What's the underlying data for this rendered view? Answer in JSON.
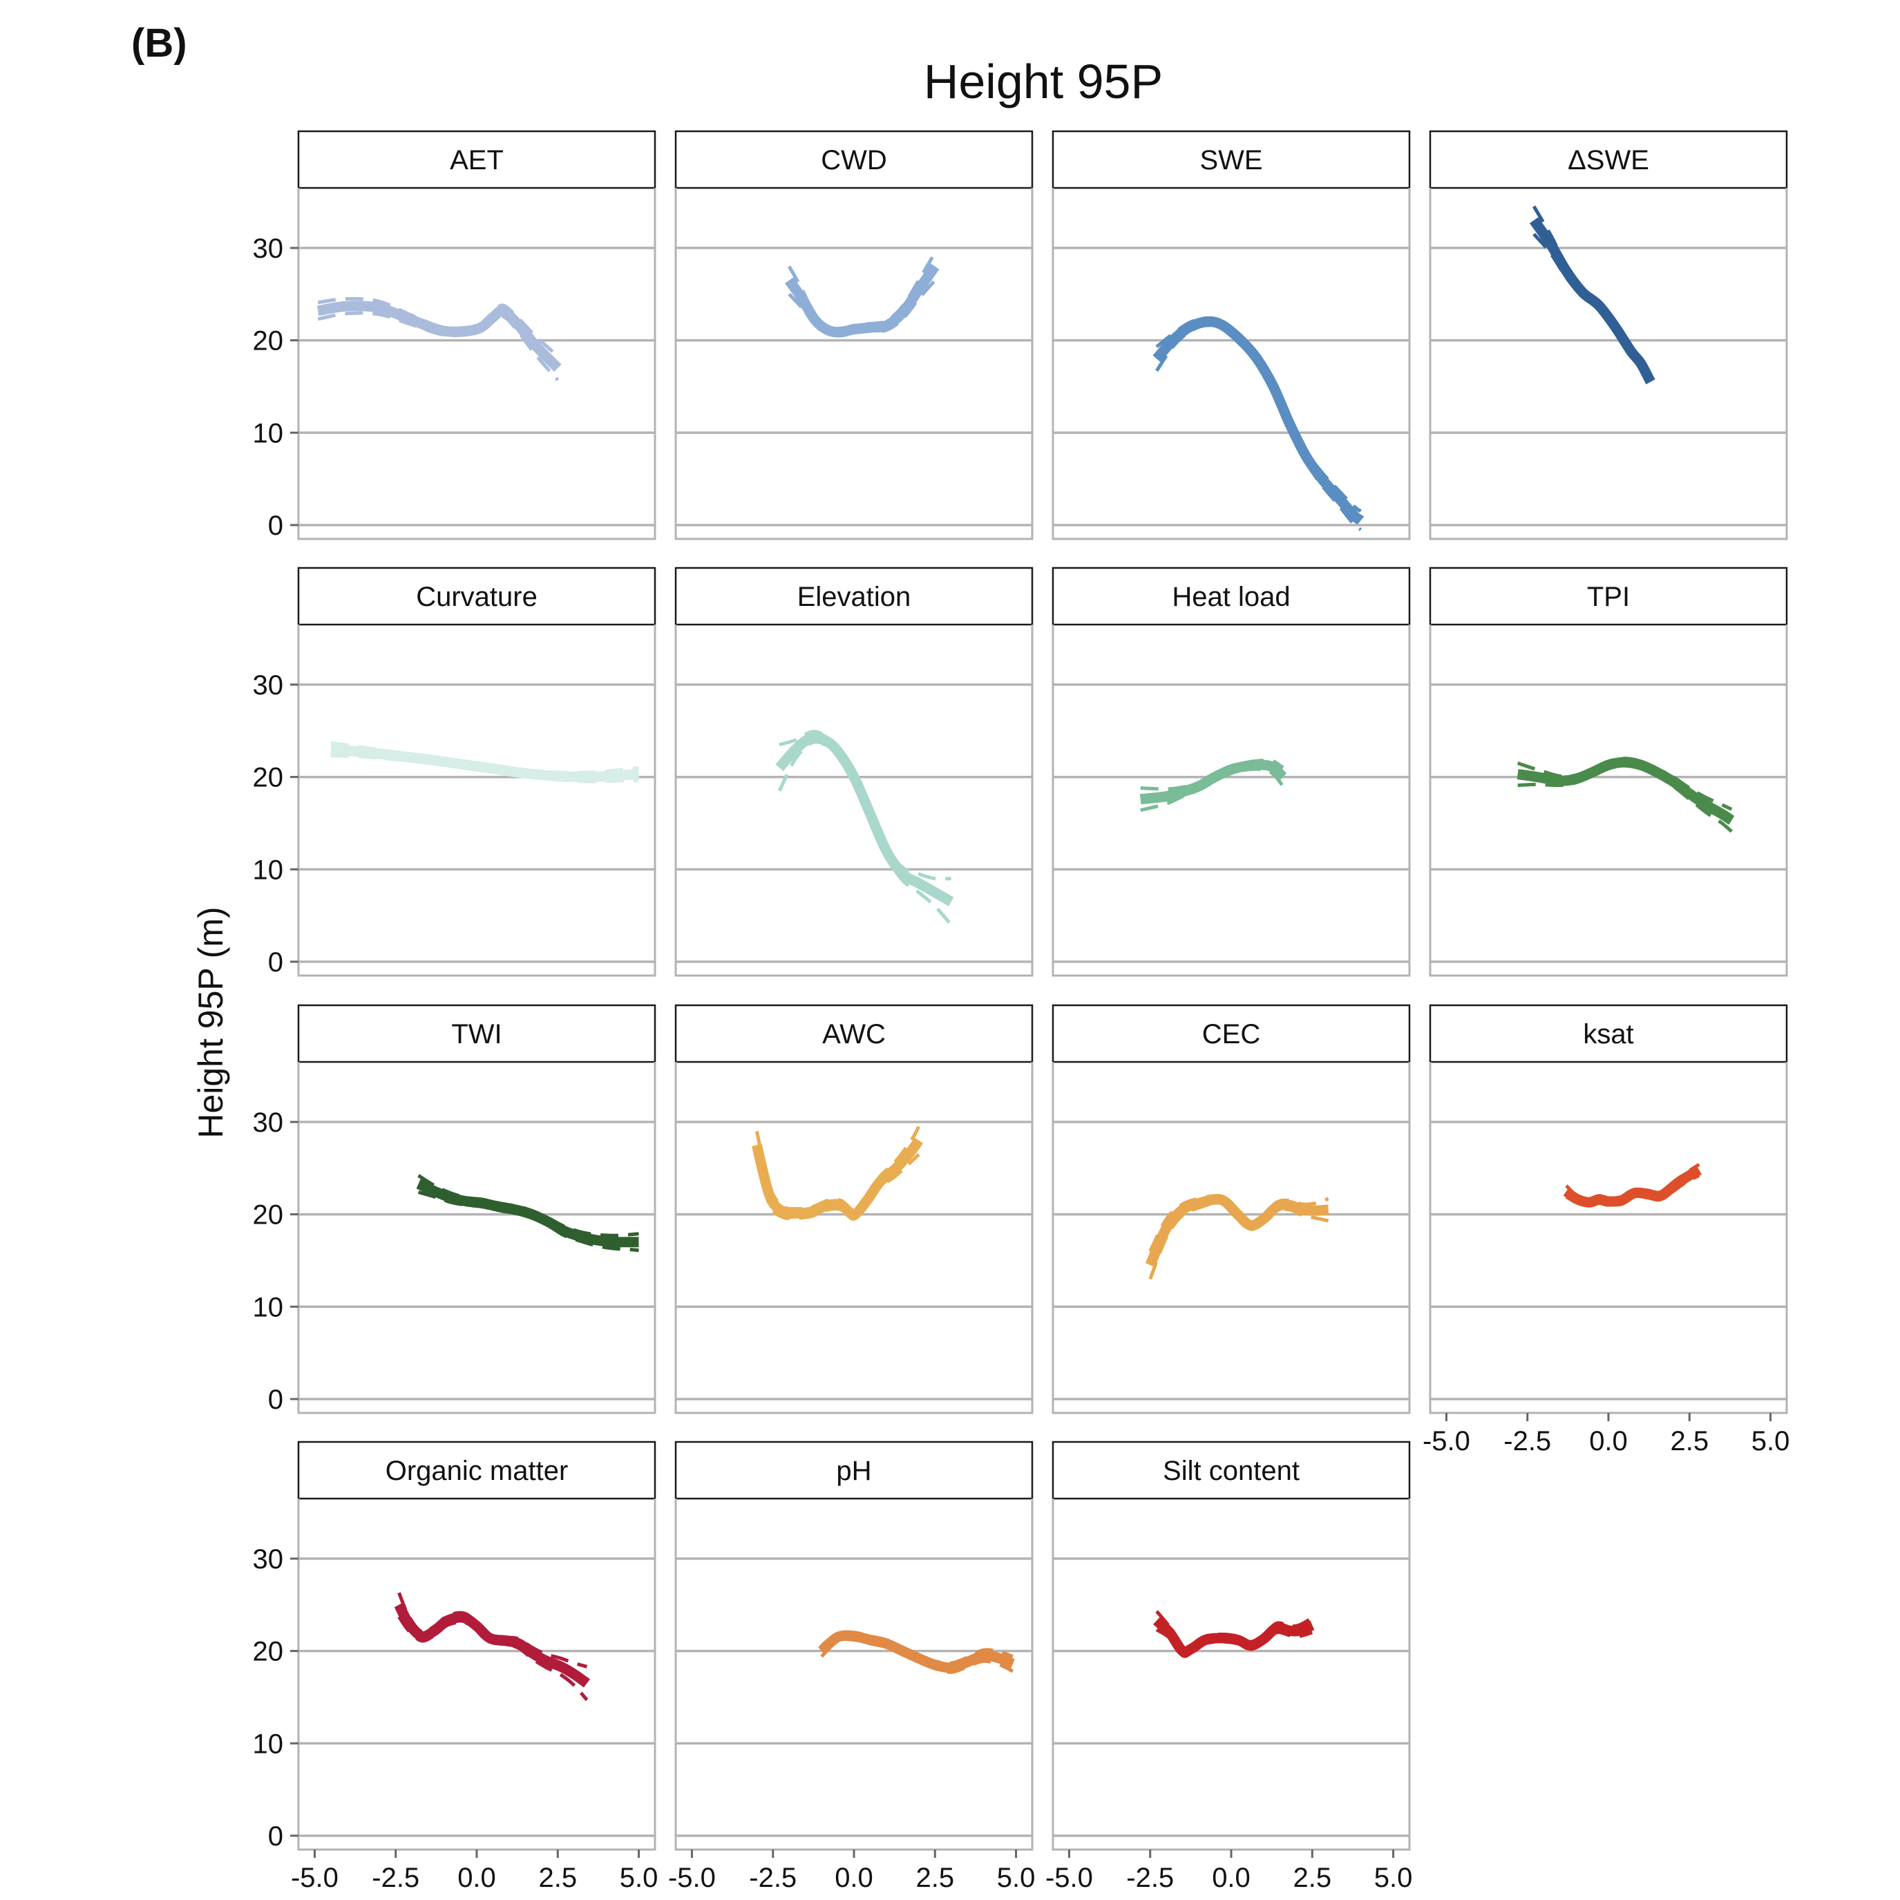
{
  "figure": {
    "panel_label": "(B)",
    "title": "Height 95P",
    "ylabel": "Height 95P (m)"
  },
  "chart_data": {
    "type": "line",
    "title": "Height 95P",
    "ylabel": "Height 95P (m)",
    "xlabel": "",
    "xlim": [
      -5.5,
      5.5
    ],
    "ylim": [
      -1.5,
      36.5
    ],
    "xticks": [
      "-5.0",
      "-2.5",
      "0.0",
      "2.5",
      "5.0"
    ],
    "xtick_values": [
      -5,
      -2.5,
      0,
      2.5,
      5
    ],
    "yticks": [
      "0",
      "10",
      "20",
      "30"
    ],
    "ytick_values": [
      0,
      10,
      20,
      30
    ],
    "grid": "horizontal",
    "ci_style": "dashed",
    "panels": [
      {
        "name": "AET",
        "color": "#aabbdc",
        "x": [
          -4.9,
          -4.0,
          -3.0,
          -2.0,
          -1.0,
          0.0,
          0.5,
          0.8,
          1.2,
          1.8,
          2.5
        ],
        "y": [
          23.2,
          23.7,
          23.5,
          22.2,
          21.0,
          21.2,
          22.5,
          23.2,
          22.0,
          19.5,
          17.0
        ],
        "ci": [
          0.9,
          0.8,
          0.7,
          0.5,
          0.4,
          0.4,
          0.5,
          0.6,
          0.7,
          1.0,
          1.3
        ]
      },
      {
        "name": "CWD",
        "color": "#8eaed7",
        "x": [
          -2.0,
          -1.6,
          -1.2,
          -0.8,
          -0.4,
          0.0,
          0.5,
          1.0,
          1.5,
          2.0,
          2.5
        ],
        "y": [
          26.5,
          24.5,
          22.2,
          21.1,
          20.9,
          21.2,
          21.4,
          21.6,
          23.0,
          25.5,
          28.0
        ],
        "ci": [
          1.5,
          1.0,
          0.5,
          0.4,
          0.4,
          0.4,
          0.4,
          0.5,
          0.7,
          1.0,
          1.5
        ]
      },
      {
        "name": "SWE",
        "color": "#5a8ec2",
        "x": [
          -2.3,
          -1.8,
          -1.3,
          -0.8,
          -0.3,
          0.3,
          0.8,
          1.3,
          1.8,
          2.3,
          2.8,
          3.3,
          3.8,
          4.0
        ],
        "y": [
          18.0,
          20.0,
          21.4,
          22.0,
          21.7,
          20.0,
          18.0,
          15.0,
          11.0,
          7.5,
          5.0,
          3.0,
          1.0,
          0.5
        ],
        "ci": [
          1.3,
          0.7,
          0.5,
          0.4,
          0.4,
          0.4,
          0.4,
          0.4,
          0.5,
          0.6,
          0.7,
          0.8,
          1.0,
          1.0
        ]
      },
      {
        "name": "ΔSWE",
        "color": "#2f5f95",
        "x": [
          -2.3,
          -1.8,
          -1.3,
          -0.8,
          -0.3,
          0.2,
          0.7,
          1.0,
          1.3
        ],
        "y": [
          33.0,
          30.5,
          27.5,
          25.2,
          23.8,
          21.5,
          18.8,
          17.5,
          15.5
        ],
        "ci": [
          1.5,
          1.0,
          0.7,
          0.5,
          0.4,
          0.4,
          0.4,
          0.4,
          0.4
        ]
      },
      {
        "name": "Curvature",
        "color": "#d6ede8",
        "x": [
          -4.5,
          -3.5,
          -2.5,
          -1.5,
          -0.5,
          0.5,
          1.5,
          2.5,
          3.5,
          4.5,
          5.0
        ],
        "y": [
          23.0,
          22.7,
          22.3,
          21.9,
          21.4,
          20.9,
          20.4,
          20.1,
          20.0,
          20.2,
          20.3
        ],
        "ci": [
          0.7,
          0.5,
          0.4,
          0.3,
          0.3,
          0.3,
          0.3,
          0.4,
          0.5,
          0.6,
          0.7
        ]
      },
      {
        "name": "Elevation",
        "color": "#a9d7cc",
        "x": [
          -2.3,
          -1.8,
          -1.3,
          -0.9,
          -0.5,
          0.0,
          0.5,
          1.0,
          1.5,
          2.0,
          2.5,
          3.0
        ],
        "y": [
          21.0,
          23.0,
          24.3,
          24.0,
          22.8,
          20.0,
          16.0,
          12.0,
          9.5,
          8.5,
          7.5,
          6.5
        ],
        "ci": [
          2.5,
          1.0,
          0.6,
          0.5,
          0.4,
          0.4,
          0.4,
          0.5,
          0.7,
          1.0,
          1.5,
          2.5
        ]
      },
      {
        "name": "Heat load",
        "color": "#79bc97",
        "x": [
          -2.8,
          -2.0,
          -1.5,
          -1.0,
          -0.5,
          0.0,
          0.5,
          1.0,
          1.3,
          1.6
        ],
        "y": [
          17.6,
          17.9,
          18.4,
          19.0,
          20.0,
          20.8,
          21.2,
          21.3,
          21.0,
          20.0
        ],
        "ci": [
          1.2,
          0.8,
          0.5,
          0.4,
          0.4,
          0.4,
          0.4,
          0.5,
          0.7,
          1.0
        ]
      },
      {
        "name": "TPI",
        "color": "#4a8a4b",
        "x": [
          -2.8,
          -2.2,
          -1.5,
          -1.0,
          -0.5,
          0.0,
          0.5,
          1.0,
          1.5,
          2.0,
          2.5,
          3.0,
          3.5,
          3.8
        ],
        "y": [
          20.3,
          20.0,
          19.6,
          19.8,
          20.5,
          21.3,
          21.6,
          21.3,
          20.5,
          19.5,
          18.2,
          17.0,
          16.0,
          15.3
        ],
        "ci": [
          1.2,
          0.8,
          0.5,
          0.4,
          0.4,
          0.4,
          0.4,
          0.4,
          0.4,
          0.5,
          0.6,
          0.8,
          1.0,
          1.2
        ]
      },
      {
        "name": "TWI",
        "color": "#2f5f2e",
        "x": [
          -1.8,
          -1.3,
          -0.8,
          -0.3,
          0.2,
          0.7,
          1.2,
          1.7,
          2.2,
          2.7,
          3.2,
          3.7,
          4.2,
          4.7,
          5.0
        ],
        "y": [
          23.3,
          22.5,
          21.8,
          21.4,
          21.2,
          20.8,
          20.5,
          20.0,
          19.2,
          18.2,
          17.6,
          17.2,
          17.0,
          17.0,
          17.0
        ],
        "ci": [
          0.9,
          0.6,
          0.5,
          0.4,
          0.4,
          0.4,
          0.4,
          0.4,
          0.4,
          0.5,
          0.5,
          0.6,
          0.7,
          0.8,
          0.9
        ]
      },
      {
        "name": "AWC",
        "color": "#e8ad50",
        "x": [
          -3.0,
          -2.6,
          -2.2,
          -1.8,
          -1.3,
          -0.8,
          -0.4,
          0.0,
          0.4,
          0.8,
          1.3,
          1.8,
          2.0
        ],
        "y": [
          27.5,
          22.0,
          20.3,
          20.1,
          20.3,
          21.0,
          21.0,
          20.0,
          21.5,
          23.5,
          25.0,
          27.0,
          28.0
        ],
        "ci": [
          1.5,
          1.0,
          0.6,
          0.5,
          0.5,
          0.5,
          0.5,
          0.5,
          0.5,
          0.6,
          0.8,
          1.2,
          1.5
        ]
      },
      {
        "name": "CEC",
        "color": "#e8a74e",
        "x": [
          -2.5,
          -2.0,
          -1.5,
          -1.0,
          -0.5,
          -0.2,
          0.2,
          0.6,
          1.0,
          1.4,
          1.8,
          2.2,
          2.6,
          3.0
        ],
        "y": [
          14.5,
          18.5,
          20.5,
          21.2,
          21.6,
          21.4,
          20.0,
          18.8,
          19.5,
          20.8,
          21.0,
          20.5,
          20.4,
          20.5
        ],
        "ci": [
          1.5,
          1.0,
          0.6,
          0.5,
          0.4,
          0.4,
          0.4,
          0.4,
          0.4,
          0.5,
          0.5,
          0.6,
          0.8,
          1.2
        ]
      },
      {
        "name": "ksat",
        "color": "#dd4f2a",
        "x": [
          -1.3,
          -1.0,
          -0.6,
          -0.3,
          0.0,
          0.4,
          0.8,
          1.2,
          1.6,
          2.0,
          2.4,
          2.8
        ],
        "y": [
          22.5,
          21.7,
          21.3,
          21.6,
          21.4,
          21.5,
          22.3,
          22.2,
          22.0,
          23.0,
          24.0,
          24.8
        ],
        "ci": [
          0.6,
          0.4,
          0.4,
          0.4,
          0.4,
          0.4,
          0.4,
          0.4,
          0.4,
          0.5,
          0.5,
          0.6
        ]
      },
      {
        "name": "Organic matter",
        "color": "#b01c3a",
        "x": [
          -2.4,
          -2.1,
          -1.7,
          -1.3,
          -0.9,
          -0.4,
          0.0,
          0.4,
          0.9,
          1.3,
          1.7,
          2.1,
          2.6,
          3.0,
          3.4
        ],
        "y": [
          25.0,
          23.0,
          21.6,
          22.2,
          23.3,
          23.6,
          22.7,
          21.4,
          21.1,
          20.8,
          19.8,
          19.0,
          18.3,
          17.5,
          16.5
        ],
        "ci": [
          1.3,
          0.8,
          0.5,
          0.5,
          0.5,
          0.5,
          0.4,
          0.4,
          0.4,
          0.5,
          0.6,
          0.7,
          0.9,
          1.2,
          1.8
        ]
      },
      {
        "name": "pH",
        "color": "#e08a45",
        "x": [
          -1.0,
          -0.5,
          0.0,
          0.5,
          1.0,
          1.5,
          2.0,
          2.5,
          3.0,
          3.5,
          4.0,
          4.5,
          4.9
        ],
        "y": [
          20.0,
          21.5,
          21.6,
          21.2,
          20.8,
          20.0,
          19.2,
          18.5,
          18.2,
          18.8,
          19.5,
          19.2,
          18.6
        ],
        "ci": [
          0.6,
          0.4,
          0.4,
          0.4,
          0.4,
          0.4,
          0.4,
          0.4,
          0.5,
          0.5,
          0.6,
          0.7,
          0.8
        ]
      },
      {
        "name": "Silt content",
        "color": "#c42127",
        "x": [
          -2.3,
          -1.9,
          -1.5,
          -1.2,
          -0.8,
          -0.3,
          0.2,
          0.6,
          1.0,
          1.4,
          1.8,
          2.1,
          2.5
        ],
        "y": [
          23.3,
          22.0,
          20.0,
          20.3,
          21.2,
          21.4,
          21.2,
          20.6,
          21.3,
          22.5,
          22.2,
          22.2,
          22.8
        ],
        "ci": [
          1.0,
          0.6,
          0.5,
          0.4,
          0.4,
          0.4,
          0.4,
          0.4,
          0.4,
          0.5,
          0.5,
          0.6,
          0.8
        ]
      }
    ]
  }
}
